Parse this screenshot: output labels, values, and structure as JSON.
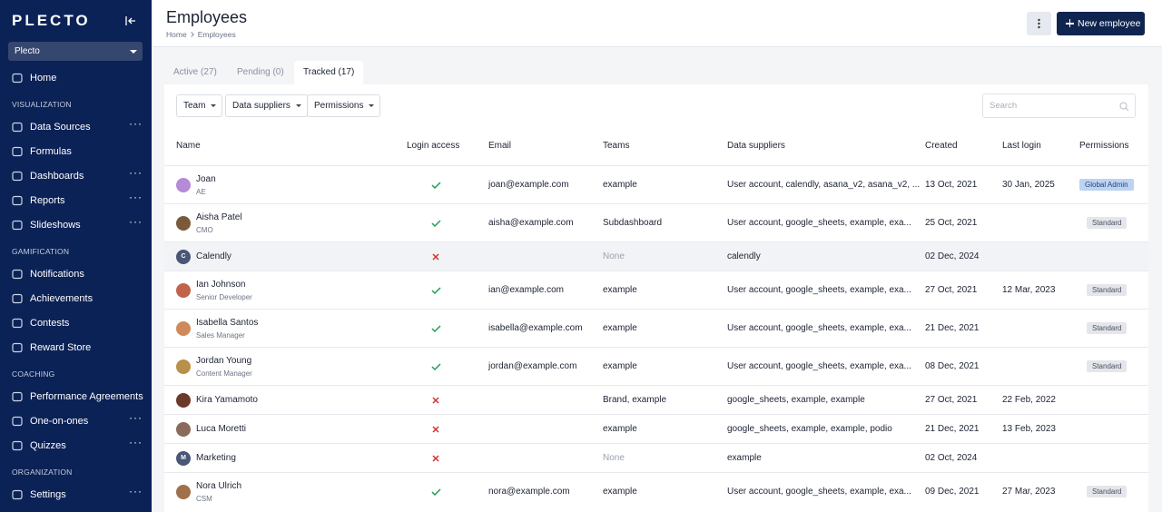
{
  "sidebar": {
    "logo": "PLECTO",
    "account": "Plecto",
    "home": "Home",
    "sections": [
      {
        "title": "VISUALIZATION",
        "items": [
          {
            "label": "Data Sources",
            "more": true
          },
          {
            "label": "Formulas",
            "more": false
          },
          {
            "label": "Dashboards",
            "more": true
          },
          {
            "label": "Reports",
            "more": true
          },
          {
            "label": "Slideshows",
            "more": true
          }
        ]
      },
      {
        "title": "GAMIFICATION",
        "items": [
          {
            "label": "Notifications",
            "more": false
          },
          {
            "label": "Achievements",
            "more": false
          },
          {
            "label": "Contests",
            "more": false
          },
          {
            "label": "Reward Store",
            "more": false
          }
        ]
      },
      {
        "title": "COACHING",
        "items": [
          {
            "label": "Performance Agreements",
            "more": false
          },
          {
            "label": "One-on-ones",
            "more": true
          },
          {
            "label": "Quizzes",
            "more": true
          }
        ]
      },
      {
        "title": "ORGANIZATION",
        "items": [
          {
            "label": "Settings",
            "more": true
          }
        ]
      }
    ]
  },
  "header": {
    "title": "Employees",
    "breadcrumb": [
      "Home",
      "Employees"
    ],
    "new_button": "New employee"
  },
  "tabs": {
    "items": [
      "Active (27)",
      "Pending (0)",
      "Tracked (17)"
    ],
    "active": 2
  },
  "filters": [
    "Team",
    "Data suppliers",
    "Permissions"
  ],
  "search_placeholder": "Search",
  "table": {
    "columns": [
      "Name",
      "Login access",
      "Email",
      "Teams",
      "Data suppliers",
      "Created",
      "Last login",
      "Permissions"
    ],
    "rows": [
      {
        "name": "Joan",
        "role": "AE",
        "login": true,
        "email": "joan@example.com",
        "teams": "example",
        "suppliers": "User account, calendly, asana_v2, asana_v2, ...",
        "created": "13 Oct, 2021",
        "last_login": "30 Jan, 2025",
        "permission": "Global Admin",
        "permission_highlight": true,
        "avatar_color": "#b58ad6"
      },
      {
        "name": "Aisha Patel",
        "role": "CMO",
        "login": true,
        "email": "aisha@example.com",
        "teams": "Subdashboard",
        "suppliers": "User account, google_sheets, example, exa...",
        "created": "25 Oct, 2021",
        "permission": "Standard",
        "avatar_color": "#7a5a3a"
      },
      {
        "name": "Calendly",
        "avatar_initial": "C",
        "login": false,
        "teams": "None",
        "teams_empty": true,
        "suppliers": "calendly",
        "created": "02 Dec, 2024",
        "hovered": true
      },
      {
        "name": "Ian Johnson",
        "role": "Senior Developer",
        "login": true,
        "email": "ian@example.com",
        "teams": "example",
        "suppliers": "User account, google_sheets, example, exa...",
        "created": "27 Oct, 2021",
        "last_login": "12 Mar, 2023",
        "permission": "Standard",
        "avatar_color": "#c0634a"
      },
      {
        "name": "Isabella Santos",
        "role": "Sales Manager",
        "login": true,
        "email": "isabella@example.com",
        "teams": "example",
        "suppliers": "User account, google_sheets, example, exa...",
        "created": "21 Dec, 2021",
        "permission": "Standard",
        "avatar_color": "#d08a5a"
      },
      {
        "name": "Jordan Young",
        "role": "Content Manager",
        "login": true,
        "email": "jordan@example.com",
        "teams": "example",
        "suppliers": "User account, google_sheets, example, exa...",
        "created": "08 Dec, 2021",
        "permission": "Standard",
        "avatar_color": "#b8904a"
      },
      {
        "name": "Kira Yamamoto",
        "login": false,
        "teams": "Brand, example",
        "suppliers": "google_sheets, example, example",
        "created": "27 Oct, 2021",
        "last_login": "22 Feb, 2022",
        "avatar_color": "#6b3a2a"
      },
      {
        "name": "Luca Moretti",
        "login": false,
        "teams": "example",
        "suppliers": "google_sheets, example, example, podio",
        "created": "21 Dec, 2021",
        "last_login": "13 Feb, 2023",
        "avatar_color": "#8a6a5a"
      },
      {
        "name": "Marketing",
        "avatar_initial": "M",
        "login": false,
        "teams": "None",
        "teams_empty": true,
        "suppliers": "example",
        "created": "02 Oct, 2024"
      },
      {
        "name": "Nora Ulrich",
        "role": "CSM",
        "login": true,
        "email": "nora@example.com",
        "teams": "example",
        "suppliers": "User account, google_sheets, example, exa...",
        "created": "09 Dec, 2021",
        "last_login": "27 Mar, 2023",
        "permission": "Standard",
        "avatar_color": "#a0704a"
      }
    ]
  }
}
